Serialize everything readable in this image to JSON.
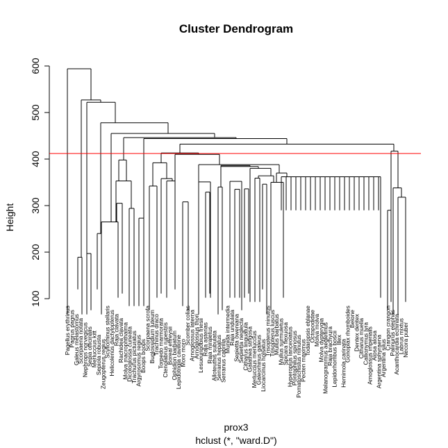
{
  "chart_data": {
    "type": "dendrogram",
    "title": "Cluster Dendrogram",
    "xlabel": "prox3",
    "sublabel": "hclust (*, \"ward.D\")",
    "ylabel": "Height",
    "ylim": [
      100,
      600
    ],
    "yticks": [
      100,
      200,
      300,
      400,
      500,
      600
    ],
    "cut_height": 412,
    "cut_color": "#ff0000",
    "leaves": [
      "Pagellus erythrinus",
      "Pagrus pagrus",
      "Galeus melastomus",
      "Scorpaena notata",
      "Nephrops norvegicus",
      "Sepia officinalis",
      "Merluccius kitt",
      "Sepiola robusta",
      "Zeugopterus regius",
      "Scyliorhinus stellaris",
      "Helicolenus dactylopterus",
      "Raja clavata",
      "Rachidea clavata",
      "Molva macrophthalma",
      "Dicologlossa cuneata",
      "Trachurus picturatus",
      "Argyrosomus regius",
      "Boops boops",
      "Scorpaena scrofa",
      "Buglossidium luteum",
      "Trachinus draco",
      "Torpedo marmorata",
      "Ctenolabrus rupestris",
      "Boreal effreysii",
      "Ophidion barbatum",
      "Lepidotrigla cavillone",
      "Moro moro",
      "Scomber colias",
      "Arnoglossus laterna",
      "Arnoglossus thori",
      "Lesueurigobius friesii",
      "Raja asterias",
      "Raja miraletus",
      "Alloteuthis subulata",
      "Serranus hepatus",
      "Serranus cabrilla",
      "Munida intermedia",
      "Raja undulata",
      "Sepietta oweniana",
      "Sepietta neglecta",
      "Citharus linguatula",
      "Galathea strigosa",
      "Merluccius merluccius",
      "Galeorhinus galeus",
      "Liocarcinus holsatus",
      "Trisopterus minutus",
      "Trisopterus luscus",
      "Mullus barbatus",
      "Mullus surmuletus",
      "Spicara flexuosa",
      "Hyperoplus lanceolatus",
      "Pontophilus spinosus",
      "Pomatoschistus minutus",
      "Pecten maximus",
      "Todaropsis eblanae",
      "Octopodidae",
      "Molva molva",
      "Molva dypterygia",
      "Melanogrammus aeglefinus",
      "Raja brachyura",
      "Lepidorhombus boscii",
      "Illex",
      "Hemimola carinata",
      "Gonoplax rhomboides",
      "Belone",
      "Dentex dentex",
      "Citharus muella",
      "Callionymus lyra",
      "Arnoglossus imperialis",
      "Alosa alosa",
      "Argentina sphyraena",
      "Argentina silus",
      "Crangon crangon",
      "Palinurus elephas",
      "Acanthocardia echinata",
      "Labrus mixtus",
      "Necora puber"
    ],
    "merges": [
      {
        "x1": 97,
        "x2": 131,
        "height": 594
      },
      {
        "x1": 117,
        "x2": 145,
        "height": 527
      },
      {
        "x1": 125,
        "x2": 166,
        "height": 522
      },
      {
        "x1": 145,
        "x2": 242,
        "height": 478
      },
      {
        "x1": 160,
        "x2": 309,
        "height": 455
      },
      {
        "x1": 178,
        "x2": 340,
        "height": 446
      },
      {
        "x1": 207,
        "x2": 413,
        "height": 444
      },
      {
        "x1": 259,
        "x2": 567,
        "height": 432
      },
      {
        "x1": 232,
        "x2": 286,
        "height": 413
      },
      {
        "x1": 563,
        "x2": 573,
        "height": 417
      },
      {
        "x1": 252,
        "x2": 316,
        "height": 410
      },
      {
        "x1": 220,
        "x2": 240,
        "height": 392
      },
      {
        "x1": 286,
        "x2": 402,
        "height": 388
      },
      {
        "x1": 318,
        "x2": 360,
        "height": 386
      },
      {
        "x1": 318,
        "x2": 372,
        "height": 384
      },
      {
        "x1": 360,
        "x2": 390,
        "height": 380
      },
      {
        "x1": 398,
        "x2": 413,
        "height": 370
      },
      {
        "x1": 405,
        "x2": 548,
        "height": 362
      },
      {
        "x1": 372,
        "x2": 394,
        "height": 364
      },
      {
        "x1": 232,
        "x2": 248,
        "height": 358
      },
      {
        "x1": 286,
        "x2": 303,
        "height": 351
      },
      {
        "x1": 390,
        "x2": 408,
        "height": 350
      },
      {
        "x1": 331,
        "x2": 348,
        "height": 352
      },
      {
        "x1": 240,
        "x2": 252,
        "height": 353
      },
      {
        "x1": 171,
        "x2": 182,
        "height": 398
      },
      {
        "x1": 167,
        "x2": 189,
        "height": 353
      },
      {
        "x1": 186,
        "x2": 193,
        "height": 294
      },
      {
        "x1": 215,
        "x2": 226,
        "height": 342
      },
      {
        "x1": 566,
        "x2": 578,
        "height": 338
      },
      {
        "x1": 573,
        "x2": 584,
        "height": 318
      },
      {
        "x1": 146,
        "x2": 170,
        "height": 265
      },
      {
        "x1": 168,
        "x2": 176,
        "height": 305
      },
      {
        "x1": 200,
        "x2": 207,
        "height": 273
      },
      {
        "x1": 112,
        "x2": 118,
        "height": 189
      },
      {
        "x1": 125,
        "x2": 131,
        "height": 197
      },
      {
        "x1": 140,
        "x2": 146,
        "height": 240
      },
      {
        "x1": 263,
        "x2": 271,
        "height": 308
      },
      {
        "x1": 296,
        "x2": 302,
        "height": 329
      },
      {
        "x1": 314,
        "x2": 320,
        "height": 340
      },
      {
        "x1": 338,
        "x2": 345,
        "height": 335
      },
      {
        "x1": 352,
        "x2": 358,
        "height": 336
      },
      {
        "x1": 367,
        "x2": 374,
        "height": 359
      },
      {
        "x1": 378,
        "x2": 384,
        "height": 346
      },
      {
        "x1": 558,
        "x2": 563,
        "height": 290
      }
    ]
  }
}
